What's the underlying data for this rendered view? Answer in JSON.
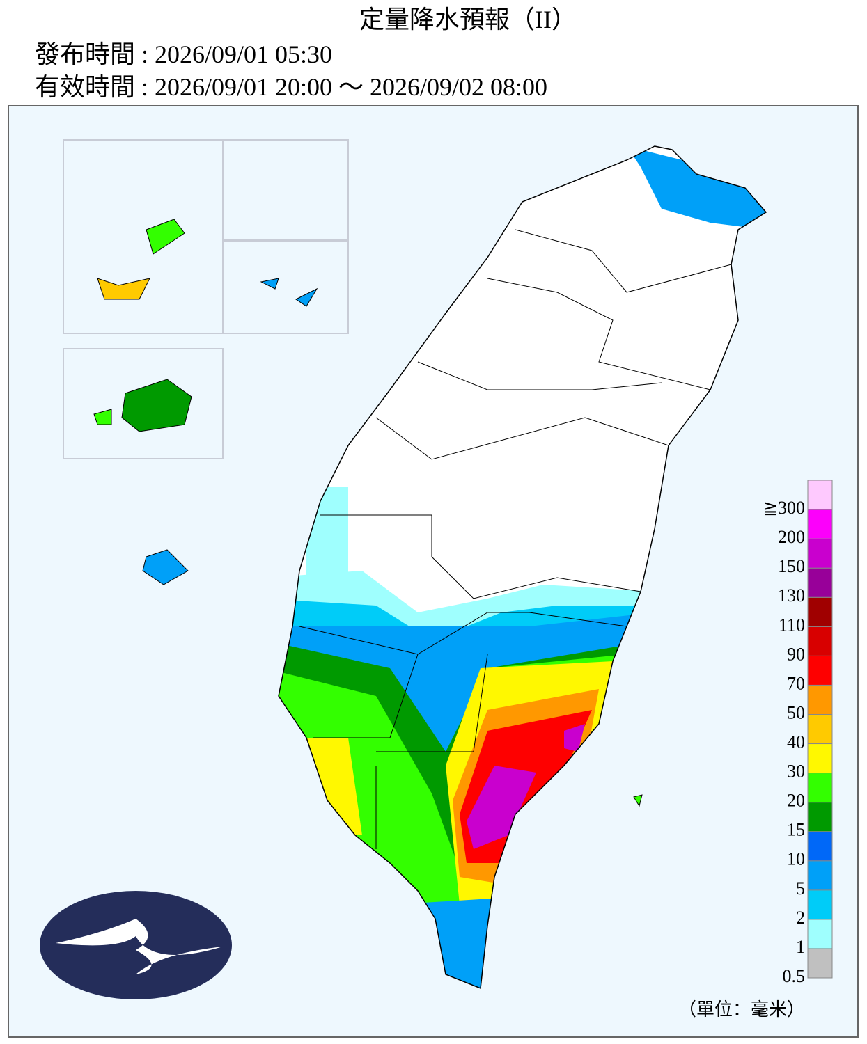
{
  "header": {
    "title": "定量降水預報（II）",
    "issued": "發布時間 : 2026/09/01 05:30",
    "valid": "有效時間 : 2026/09/01 20:00 ～ 2026/09/02 08:00"
  },
  "legend": {
    "colors": [
      "#c0c0c0",
      "#9ffffe",
      "#00ccf8",
      "#00a0f8",
      "#0068f8",
      "#009a00",
      "#33ff00",
      "#fff800",
      "#ffca00",
      "#ff9800",
      "#fe0000",
      "#d80000",
      "#a00000",
      "#980099",
      "#c900ce",
      "#fc00fb",
      "#fec9fe"
    ],
    "labels": [
      "0.5",
      "1",
      "2",
      "5",
      "10",
      "15",
      "20",
      "30",
      "40",
      "50",
      "70",
      "90",
      "110",
      "130",
      "150",
      "200",
      "≧300"
    ]
  },
  "unit": "（單位：毫米）"
}
